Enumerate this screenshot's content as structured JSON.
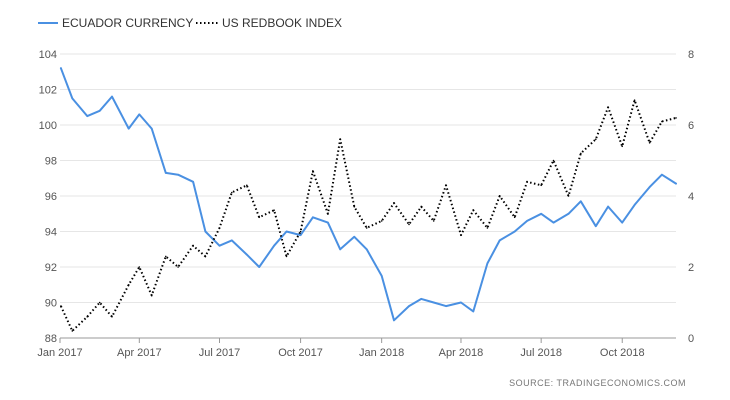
{
  "colors": {
    "blue": "#4a90e2",
    "black": "#000000",
    "grid": "#e6e6e6",
    "axis": "#999999"
  },
  "chart_data": {
    "type": "line",
    "legend_position": "top-left",
    "grid": true,
    "source": "SOURCE:  TRADINGECONOMICS.COM",
    "x_ticks": [
      "Jan 2017",
      "Apr 2017",
      "Jul 2017",
      "Oct 2017",
      "Jan 2018",
      "Apr 2018",
      "Jul 2018",
      "Oct 2018"
    ],
    "x_range": [
      "2017-01",
      "2018-12"
    ],
    "y_left": {
      "ticks": [
        "88",
        "90",
        "92",
        "94",
        "96",
        "98",
        "100",
        "102",
        "104"
      ],
      "range": [
        88,
        104
      ]
    },
    "y_right": {
      "ticks": [
        "0",
        "2",
        "4",
        "6",
        "8"
      ],
      "range": [
        0,
        8
      ]
    },
    "series": [
      {
        "name": "ECUADOR CURRENCY",
        "axis": "left",
        "style": "solid",
        "color": "#4a90e2",
        "x": [
          "2017-01-02",
          "2017-01-15",
          "2017-02-01",
          "2017-02-15",
          "2017-03-01",
          "2017-03-20",
          "2017-04-01",
          "2017-04-15",
          "2017-05-01",
          "2017-05-15",
          "2017-06-01",
          "2017-06-15",
          "2017-07-01",
          "2017-07-15",
          "2017-08-01",
          "2017-08-15",
          "2017-09-01",
          "2017-09-15",
          "2017-10-01",
          "2017-10-15",
          "2017-11-01",
          "2017-11-15",
          "2017-12-01",
          "2017-12-15",
          "2018-01-01",
          "2018-01-15",
          "2018-02-01",
          "2018-02-15",
          "2018-03-01",
          "2018-03-15",
          "2018-04-01",
          "2018-04-15",
          "2018-05-01",
          "2018-05-15",
          "2018-06-01",
          "2018-06-15",
          "2018-07-01",
          "2018-07-15",
          "2018-08-01",
          "2018-08-15",
          "2018-09-01",
          "2018-09-15",
          "2018-10-01",
          "2018-10-15",
          "2018-11-01",
          "2018-11-15",
          "2018-12-01"
        ],
        "values": [
          103.2,
          101.5,
          100.5,
          100.8,
          101.6,
          99.8,
          100.6,
          99.8,
          97.3,
          97.2,
          96.8,
          94.0,
          93.2,
          93.5,
          92.7,
          92.0,
          93.2,
          94.0,
          93.8,
          94.8,
          94.5,
          93.0,
          93.7,
          93.0,
          91.5,
          89.0,
          89.8,
          90.2,
          90.0,
          89.8,
          90.0,
          89.5,
          92.2,
          93.5,
          94.0,
          94.6,
          95.0,
          94.5,
          95.0,
          95.7,
          94.3,
          95.4,
          94.5,
          95.5,
          96.5,
          97.2,
          96.7
        ]
      },
      {
        "name": "US REDBOOK INDEX",
        "axis": "right",
        "style": "dotted",
        "color": "#000000",
        "x": [
          "2017-01-02",
          "2017-01-15",
          "2017-02-01",
          "2017-02-15",
          "2017-03-01",
          "2017-03-20",
          "2017-04-01",
          "2017-04-15",
          "2017-05-01",
          "2017-05-15",
          "2017-06-01",
          "2017-06-15",
          "2017-07-01",
          "2017-07-15",
          "2017-08-01",
          "2017-08-15",
          "2017-09-01",
          "2017-09-15",
          "2017-10-01",
          "2017-10-15",
          "2017-11-01",
          "2017-11-15",
          "2017-12-01",
          "2017-12-15",
          "2018-01-01",
          "2018-01-15",
          "2018-02-01",
          "2018-02-15",
          "2018-03-01",
          "2018-03-15",
          "2018-04-01",
          "2018-04-15",
          "2018-05-01",
          "2018-05-15",
          "2018-06-01",
          "2018-06-15",
          "2018-07-01",
          "2018-07-15",
          "2018-08-01",
          "2018-08-15",
          "2018-09-01",
          "2018-09-15",
          "2018-10-01",
          "2018-10-15",
          "2018-11-01",
          "2018-11-15",
          "2018-12-01"
        ],
        "values": [
          0.9,
          0.2,
          0.6,
          1.0,
          0.6,
          1.5,
          2.0,
          1.2,
          2.3,
          2.0,
          2.6,
          2.3,
          3.1,
          4.1,
          4.3,
          3.4,
          3.6,
          2.3,
          3.0,
          4.7,
          3.5,
          5.6,
          3.7,
          3.1,
          3.3,
          3.8,
          3.2,
          3.7,
          3.3,
          4.3,
          2.9,
          3.6,
          3.1,
          4.0,
          3.4,
          4.4,
          4.3,
          5.0,
          4.0,
          5.2,
          5.6,
          6.5,
          5.4,
          6.7,
          5.5,
          6.1,
          6.2
        ]
      }
    ]
  }
}
